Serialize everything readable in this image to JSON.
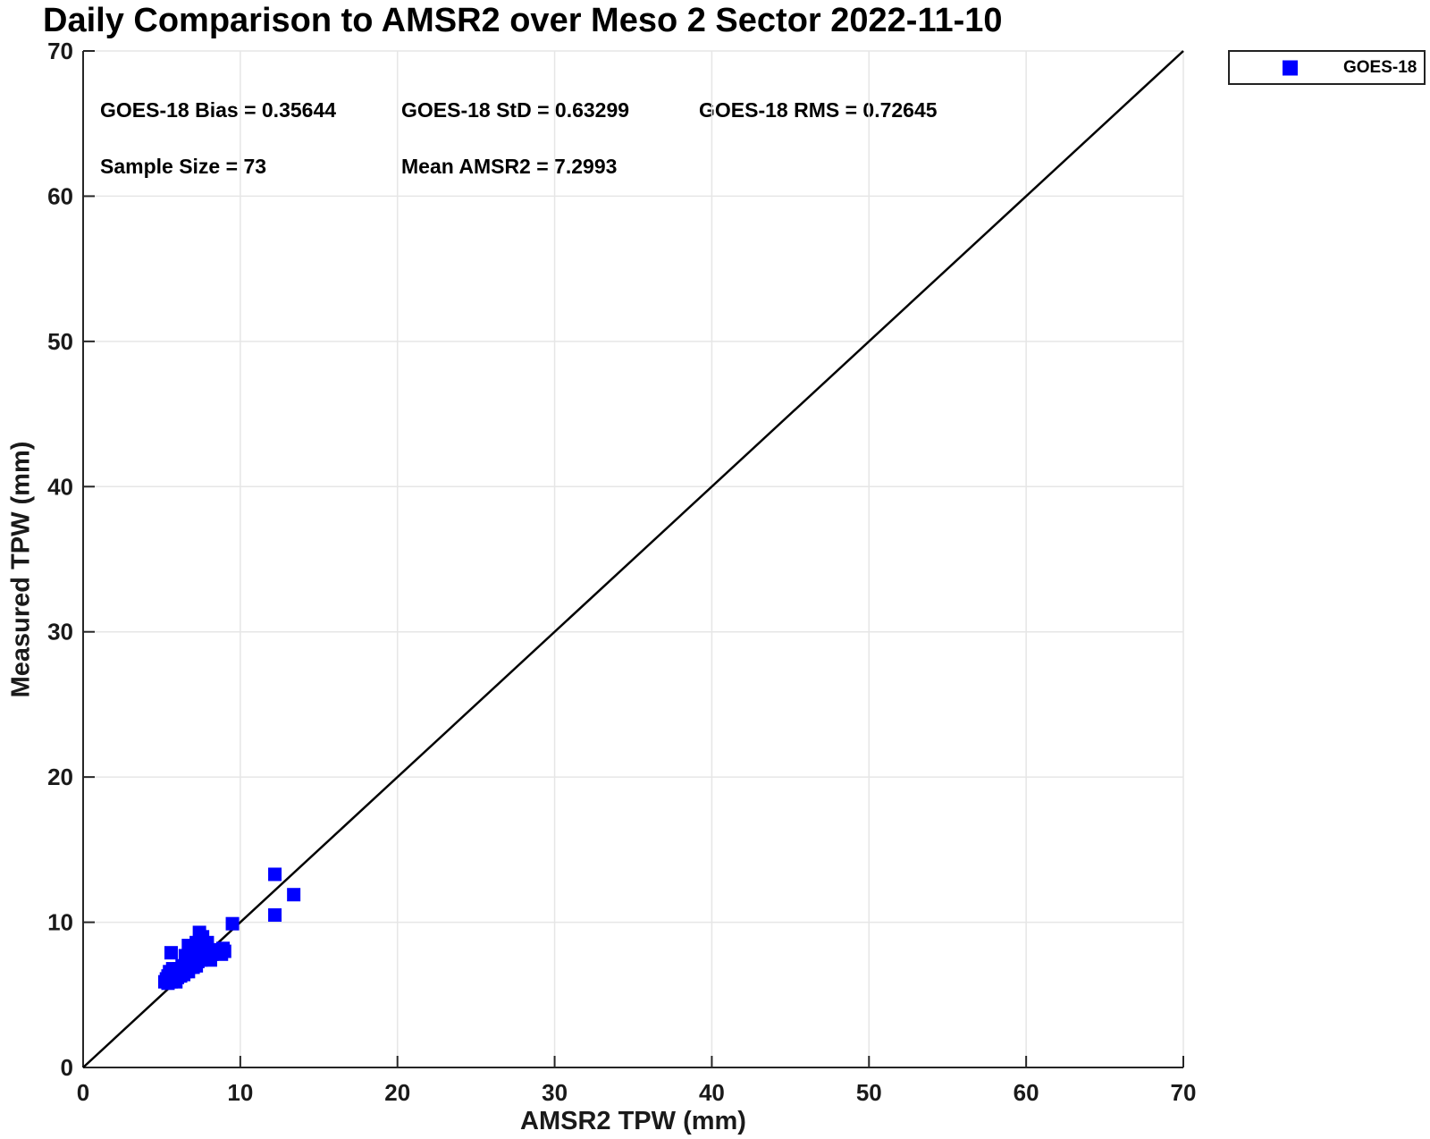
{
  "title": "Daily Comparison to AMSR2 over Meso 2 Sector 2022-11-10",
  "stats": {
    "bias": "GOES-18 Bias = 0.35644",
    "std": "GOES-18 StD = 0.63299",
    "rms": "GOES-18 RMS = 0.72645",
    "sample_size": "Sample Size = 73",
    "mean_amsr2": "Mean AMSR2 = 7.2993"
  },
  "legend": {
    "label": "GOES-18",
    "marker_color": "#0000ff",
    "position": "top-right-outside"
  },
  "chart_data": {
    "type": "scatter",
    "title": "Daily Comparison to AMSR2 over Meso 2 Sector 2022-11-10",
    "xlabel": "AMSR2 TPW (mm)",
    "ylabel": "Measured TPW (mm)",
    "xlim": [
      0,
      70
    ],
    "ylim": [
      0,
      70
    ],
    "x_ticks": [
      0,
      10,
      20,
      30,
      40,
      50,
      60,
      70
    ],
    "y_ticks": [
      0,
      10,
      20,
      30,
      40,
      50,
      60,
      70
    ],
    "grid": true,
    "legend_position": "top-right-outside",
    "colors": {
      "axis": "#262626",
      "grid": "#e6e6e6",
      "marker": "#0000ff",
      "line": "#000000"
    },
    "identity_line": {
      "from": [
        0,
        0
      ],
      "to": [
        70,
        70
      ],
      "color": "#000000"
    },
    "annotations": [
      "GOES-18 Bias = 0.35644",
      "GOES-18 StD = 0.63299",
      "GOES-18 RMS = 0.72645",
      "Sample Size = 73",
      "Mean AMSR2 = 7.2993"
    ],
    "sample_size": 73,
    "mean_amsr2": 7.2993,
    "bias": 0.35644,
    "std": 0.63299,
    "rms": 0.72645,
    "series": [
      {
        "name": "GOES-18",
        "marker": "filled-square",
        "color": "#0000ff",
        "points": [
          [
            5.2,
            5.9
          ],
          [
            5.3,
            6.1
          ],
          [
            5.4,
            5.8
          ],
          [
            5.4,
            6.3
          ],
          [
            5.5,
            6.0
          ],
          [
            5.5,
            6.6
          ],
          [
            5.6,
            5.9
          ],
          [
            5.6,
            6.2
          ],
          [
            5.6,
            7.9
          ],
          [
            5.7,
            6.0
          ],
          [
            5.7,
            6.4
          ],
          [
            5.7,
            6.8
          ],
          [
            5.8,
            6.1
          ],
          [
            5.8,
            6.5
          ],
          [
            5.9,
            5.9
          ],
          [
            5.9,
            6.3
          ],
          [
            5.9,
            6.7
          ],
          [
            6.0,
            6.2
          ],
          [
            6.0,
            6.6
          ],
          [
            6.1,
            6.4
          ],
          [
            6.1,
            6.8
          ],
          [
            6.2,
            6.3
          ],
          [
            6.2,
            6.7
          ],
          [
            6.3,
            6.5
          ],
          [
            6.3,
            7.0
          ],
          [
            6.4,
            6.4
          ],
          [
            6.4,
            6.8
          ],
          [
            6.5,
            6.6
          ],
          [
            6.5,
            7.0
          ],
          [
            6.5,
            7.7
          ],
          [
            6.6,
            6.7
          ],
          [
            6.6,
            7.2
          ],
          [
            6.7,
            6.6
          ],
          [
            6.7,
            7.0
          ],
          [
            6.7,
            8.4
          ],
          [
            6.8,
            6.9
          ],
          [
            6.8,
            7.3
          ],
          [
            6.9,
            7.1
          ],
          [
            6.9,
            7.5
          ],
          [
            7.0,
            6.9
          ],
          [
            7.0,
            7.3
          ],
          [
            7.1,
            7.2
          ],
          [
            7.1,
            7.6
          ],
          [
            7.2,
            7.0
          ],
          [
            7.2,
            7.4
          ],
          [
            7.2,
            8.6
          ],
          [
            7.3,
            7.3
          ],
          [
            7.3,
            7.7
          ],
          [
            7.4,
            7.5
          ],
          [
            7.4,
            9.3
          ],
          [
            7.5,
            7.4
          ],
          [
            7.5,
            7.8
          ],
          [
            7.6,
            7.6
          ],
          [
            7.6,
            9.0
          ],
          [
            7.7,
            7.5
          ],
          [
            7.7,
            7.9
          ],
          [
            7.8,
            7.7
          ],
          [
            7.9,
            7.6
          ],
          [
            7.9,
            8.6
          ],
          [
            8.0,
            7.8
          ],
          [
            8.1,
            7.4
          ],
          [
            8.1,
            8.0
          ],
          [
            8.2,
            7.8
          ],
          [
            8.3,
            8.1
          ],
          [
            8.5,
            8.1
          ],
          [
            8.6,
            7.9
          ],
          [
            8.8,
            7.8
          ],
          [
            8.9,
            8.2
          ],
          [
            9.0,
            8.0
          ],
          [
            9.5,
            9.9
          ],
          [
            12.2,
            10.5
          ],
          [
            12.2,
            13.3
          ],
          [
            13.4,
            11.9
          ]
        ]
      }
    ]
  }
}
